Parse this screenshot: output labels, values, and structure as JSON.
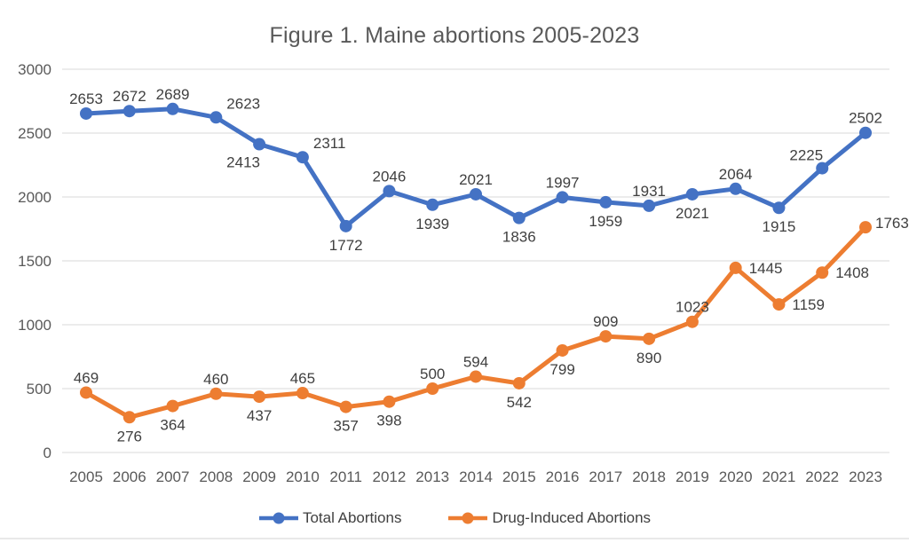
{
  "chart_data": {
    "type": "line",
    "title": "Figure 1. Maine abortions 2005-2023",
    "categories": [
      "2005",
      "2006",
      "2007",
      "2008",
      "2009",
      "2010",
      "2011",
      "2012",
      "2013",
      "2014",
      "2015",
      "2016",
      "2017",
      "2018",
      "2019",
      "2020",
      "2021",
      "2022",
      "2023"
    ],
    "series": [
      {
        "name": "Total Abortions",
        "color": "#4472C4",
        "values": [
          2653,
          2672,
          2689,
          2623,
          2413,
          2311,
          1772,
          2046,
          1939,
          2021,
          1836,
          1997,
          1959,
          1931,
          2021,
          2064,
          1915,
          2225,
          2502
        ],
        "label_pos": [
          "a",
          "a",
          "a",
          "ar",
          "bl",
          "ar",
          "b",
          "a",
          "b",
          "a",
          "b",
          "a",
          "b",
          "a",
          "b",
          "a",
          "b",
          "al",
          "a"
        ]
      },
      {
        "name": "Drug-Induced Abortions",
        "color": "#ED7D31",
        "values": [
          469,
          276,
          364,
          460,
          437,
          465,
          357,
          398,
          500,
          594,
          542,
          799,
          909,
          890,
          1023,
          1445,
          1159,
          1408,
          1763
        ],
        "label_pos": [
          "a",
          "b",
          "b",
          "a",
          "b",
          "a",
          "b",
          "b",
          "a",
          "a",
          "b",
          "b",
          "a",
          "b",
          "a",
          "r",
          "r",
          "r",
          "ra"
        ]
      }
    ],
    "ylim": [
      0,
      3000
    ],
    "yticks": [
      0,
      500,
      1000,
      1500,
      2000,
      2500,
      3000
    ],
    "xlabel": "",
    "ylabel": "",
    "grid": true,
    "gridline_color": "#D9D9D9",
    "legend_position": "bottom",
    "background_color": "#FFFFFF",
    "text_color": "#595959"
  }
}
